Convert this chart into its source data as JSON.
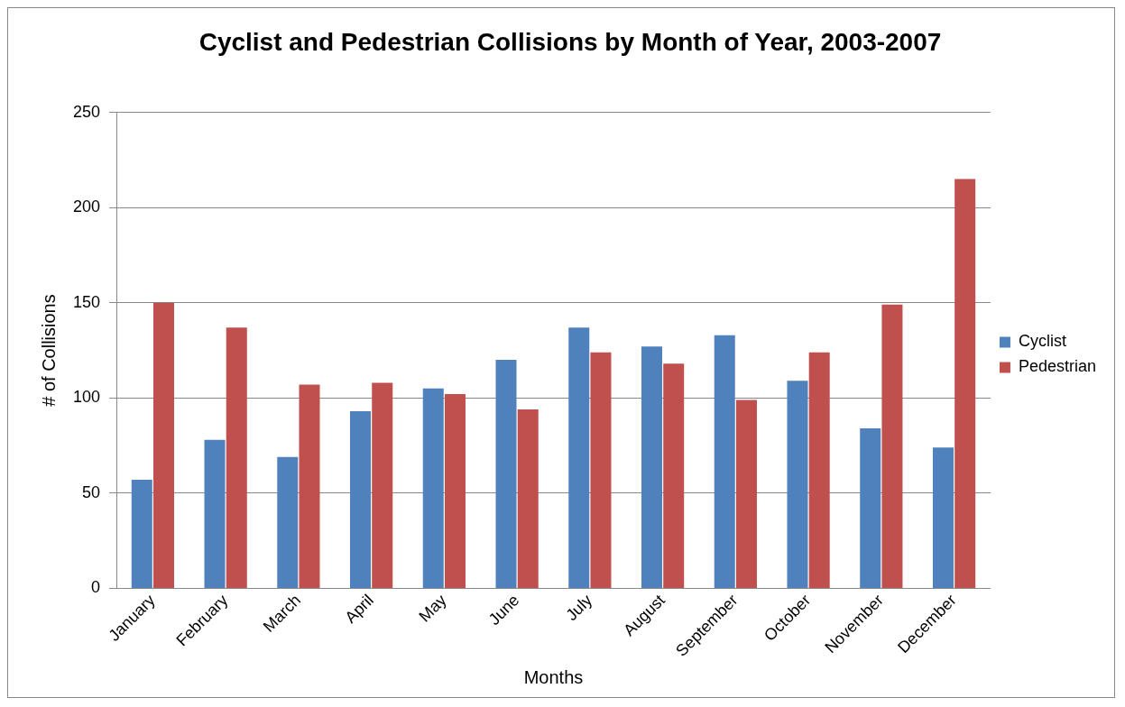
{
  "chart_data": {
    "type": "bar",
    "title": "Cyclist and Pedestrian Collisions by Month of Year, 2003-2007",
    "xlabel": "Months",
    "ylabel": "# of Collisions",
    "categories": [
      "January",
      "February",
      "March",
      "April",
      "May",
      "June",
      "July",
      "August",
      "September",
      "October",
      "November",
      "December"
    ],
    "series": [
      {
        "name": "Cyclist",
        "color": "#4f81bd",
        "values": [
          57,
          78,
          69,
          93,
          105,
          120,
          137,
          127,
          133,
          109,
          84,
          74
        ]
      },
      {
        "name": "Pedestrian",
        "color": "#c0504d",
        "values": [
          150,
          137,
          107,
          108,
          102,
          94,
          124,
          118,
          99,
          124,
          149,
          215
        ]
      }
    ],
    "ylim": [
      0,
      250
    ],
    "yticks": [
      0,
      50,
      100,
      150,
      200,
      250
    ],
    "grid": "y",
    "legend": "right"
  }
}
